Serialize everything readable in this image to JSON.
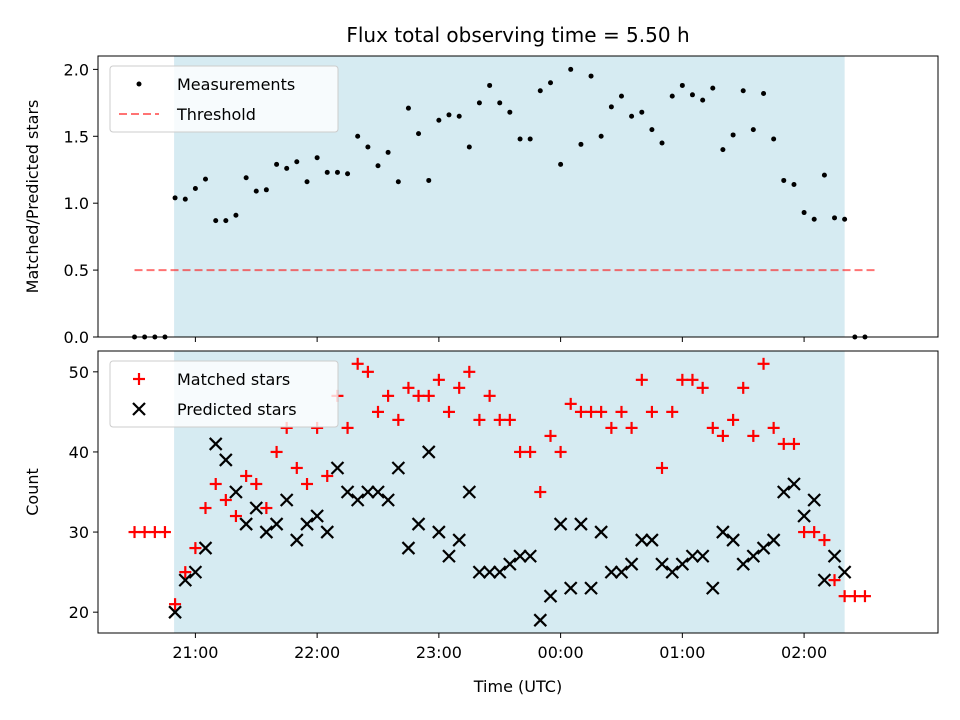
{
  "chart_data": [
    {
      "type": "scatter",
      "title": "Flux total observing time = 5.50 h",
      "xlabel": "",
      "ylabel": "Matched/Predicted stars",
      "xlim": [
        -0.8,
        6.1
      ],
      "ylim": [
        0,
        2.1
      ],
      "yticks": [
        0.0,
        0.5,
        1.0,
        1.5,
        2.0
      ],
      "ytick_labels": [
        "0.0",
        "0.5",
        "1.0",
        "1.5",
        "2.0"
      ],
      "xticks": [
        0.0,
        1.0,
        2.0,
        3.0,
        4.0,
        5.0
      ],
      "shaded_span": [
        -0.175,
        5.333
      ],
      "shade_color": "#add8e6",
      "legend": {
        "placement": "upper-left",
        "entries": [
          "Measurements",
          "Threshold"
        ]
      },
      "threshold": {
        "value": 0.5,
        "x_range": [
          -0.5,
          5.6
        ],
        "color": "#ff0000"
      },
      "series": [
        {
          "name": "Measurements",
          "marker": "dot",
          "color": "#000000",
          "x": [
            -0.5,
            -0.417,
            -0.333,
            -0.25,
            -0.167,
            -0.083,
            0.0,
            0.083,
            0.167,
            0.25,
            0.333,
            0.417,
            0.5,
            0.583,
            0.667,
            0.75,
            0.833,
            0.917,
            1.0,
            1.083,
            1.167,
            1.25,
            1.333,
            1.417,
            1.5,
            1.583,
            1.667,
            1.75,
            1.833,
            1.917,
            2.0,
            2.083,
            2.167,
            2.25,
            2.333,
            2.417,
            2.5,
            2.583,
            2.667,
            2.75,
            2.833,
            2.917,
            3.0,
            3.083,
            3.167,
            3.25,
            3.333,
            3.417,
            3.5,
            3.583,
            3.667,
            3.75,
            3.833,
            3.917,
            4.0,
            4.083,
            4.167,
            4.25,
            4.333,
            4.417,
            4.5,
            4.583,
            4.667,
            4.75,
            4.833,
            4.917,
            5.0,
            5.083,
            5.167,
            5.25,
            5.333,
            5.417,
            5.5
          ],
          "y": [
            0,
            0,
            0,
            0,
            1.04,
            1.03,
            1.11,
            1.18,
            0.87,
            0.87,
            0.91,
            1.19,
            1.09,
            1.1,
            1.29,
            1.26,
            1.31,
            1.16,
            1.34,
            1.23,
            1.23,
            1.22,
            1.5,
            1.42,
            1.28,
            1.38,
            1.16,
            1.71,
            1.52,
            1.17,
            1.62,
            1.66,
            1.65,
            1.42,
            1.75,
            1.88,
            1.75,
            1.68,
            1.48,
            1.48,
            1.84,
            1.9,
            1.29,
            2.0,
            1.44,
            1.95,
            1.5,
            1.72,
            1.8,
            1.65,
            1.68,
            1.55,
            1.45,
            1.8,
            1.88,
            1.81,
            1.77,
            1.86,
            1.4,
            1.51,
            1.84,
            1.55,
            1.82,
            1.48,
            1.17,
            1.14,
            0.93,
            0.88,
            1.21,
            0.89,
            0.88,
            0,
            0
          ]
        }
      ]
    },
    {
      "type": "scatter",
      "title": "",
      "xlabel": "Time (UTC)",
      "ylabel": "Count",
      "xlim": [
        -0.8,
        6.1
      ],
      "ylim": [
        17.4,
        52.6
      ],
      "yticks": [
        20,
        30,
        40,
        50
      ],
      "ytick_labels": [
        "20",
        "30",
        "40",
        "50"
      ],
      "xticks": [
        0.0,
        1.0,
        2.0,
        3.0,
        4.0,
        5.0
      ],
      "xtick_labels": [
        "21:00",
        "22:00",
        "23:00",
        "00:00",
        "01:00",
        "02:00"
      ],
      "shaded_span": [
        -0.175,
        5.333
      ],
      "shade_color": "#add8e6",
      "legend": {
        "placement": "upper-left",
        "entries": [
          "Matched stars",
          "Predicted stars"
        ]
      },
      "series": [
        {
          "name": "Matched stars",
          "marker": "plus",
          "color": "#ff0000",
          "x": [
            -0.5,
            -0.417,
            -0.333,
            -0.25,
            -0.167,
            -0.083,
            0.0,
            0.083,
            0.167,
            0.25,
            0.333,
            0.417,
            0.5,
            0.583,
            0.667,
            0.75,
            0.833,
            0.917,
            1.0,
            1.083,
            1.167,
            1.25,
            1.333,
            1.417,
            1.5,
            1.583,
            1.667,
            1.75,
            1.833,
            1.917,
            2.0,
            2.083,
            2.167,
            2.25,
            2.333,
            2.417,
            2.5,
            2.583,
            2.667,
            2.75,
            2.833,
            2.917,
            3.0,
            3.083,
            3.167,
            3.25,
            3.333,
            3.417,
            3.5,
            3.583,
            3.667,
            3.75,
            3.833,
            3.917,
            4.0,
            4.083,
            4.167,
            4.25,
            4.333,
            4.417,
            4.5,
            4.583,
            4.667,
            4.75,
            4.833,
            4.917,
            5.0,
            5.083,
            5.167,
            5.25,
            5.333,
            5.417,
            5.5
          ],
          "y": [
            30,
            30,
            30,
            30,
            21,
            25,
            28,
            33,
            36,
            34,
            32,
            37,
            36,
            33,
            40,
            43,
            38,
            36,
            43,
            37,
            47,
            43,
            51,
            50,
            45,
            47,
            44,
            48,
            47,
            47,
            49,
            45,
            48,
            50,
            44,
            47,
            44,
            44,
            40,
            40,
            35,
            42,
            40,
            46,
            45,
            45,
            45,
            43,
            45,
            43,
            49,
            45,
            38,
            45,
            49,
            49,
            48,
            43,
            42,
            44,
            48,
            42,
            51,
            43,
            41,
            41,
            30,
            30,
            29,
            24,
            22,
            22,
            22
          ]
        },
        {
          "name": "Predicted stars",
          "marker": "x",
          "color": "#000000",
          "x": [
            -0.167,
            -0.083,
            0.0,
            0.083,
            0.167,
            0.25,
            0.333,
            0.417,
            0.5,
            0.583,
            0.667,
            0.75,
            0.833,
            0.917,
            1.0,
            1.083,
            1.167,
            1.25,
            1.333,
            1.417,
            1.5,
            1.583,
            1.667,
            1.75,
            1.833,
            1.917,
            2.0,
            2.083,
            2.167,
            2.25,
            2.333,
            2.417,
            2.5,
            2.583,
            2.667,
            2.75,
            2.833,
            2.917,
            3.0,
            3.083,
            3.167,
            3.25,
            3.333,
            3.417,
            3.5,
            3.583,
            3.667,
            3.75,
            3.833,
            3.917,
            4.0,
            4.083,
            4.167,
            4.25,
            4.333,
            4.417,
            4.5,
            4.583,
            4.667,
            4.75,
            4.833,
            4.917,
            5.0,
            5.083,
            5.167,
            5.25,
            5.333
          ],
          "y": [
            20,
            24,
            25,
            28,
            41,
            39,
            35,
            31,
            33,
            30,
            31,
            34,
            29,
            31,
            32,
            30,
            38,
            35,
            34,
            35,
            35,
            34,
            38,
            28,
            31,
            40,
            30,
            27,
            29,
            35,
            25,
            25,
            25,
            26,
            27,
            27,
            19,
            22,
            31,
            23,
            31,
            23,
            30,
            25,
            25,
            26,
            29,
            29,
            26,
            25,
            26,
            27,
            27,
            23,
            30,
            29,
            26,
            27,
            28,
            29,
            35,
            36,
            32,
            34,
            24,
            27,
            25
          ]
        }
      ]
    }
  ]
}
